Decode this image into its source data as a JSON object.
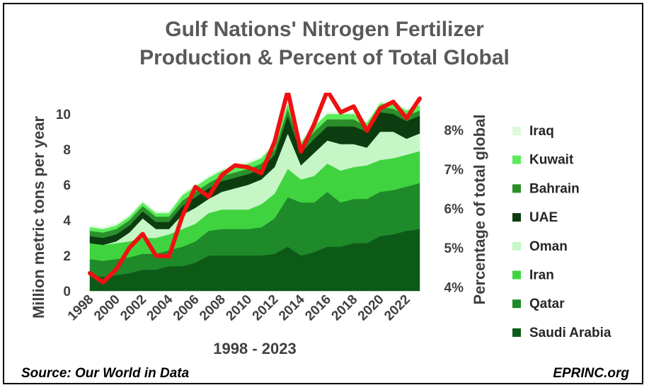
{
  "chart_data": {
    "type": "area",
    "title_line1": "Gulf Nations' Nitrogen Fertilizer",
    "title_line2": "Production & Percent of Total Global",
    "xlabel": "1998 - 2023",
    "ylabel": "Million  metric tons per year",
    "y2label": "Percentage of total global",
    "x": [
      1998,
      1999,
      2000,
      2001,
      2002,
      2003,
      2004,
      2005,
      2006,
      2007,
      2008,
      2009,
      2010,
      2011,
      2012,
      2013,
      2014,
      2015,
      2016,
      2017,
      2018,
      2019,
      2020,
      2021,
      2022,
      2023
    ],
    "x_tick_labels": [
      "1998",
      "2000",
      "2002",
      "2004",
      "2006",
      "2008",
      "2010",
      "2012",
      "2014",
      "2016",
      "2018",
      "2020",
      "2022"
    ],
    "ylim": [
      0,
      11.2
    ],
    "y_ticks": [
      "0",
      "2",
      "4",
      "6",
      "8",
      "10"
    ],
    "y2lim": [
      3.9,
      8.95
    ],
    "y2_ticks": [
      "4%",
      "5%",
      "6%",
      "7%",
      "8%"
    ],
    "series": [
      {
        "name": "Saudi Arabia",
        "color": "#0d5a18",
        "values": [
          0.9,
          0.8,
          0.9,
          1.0,
          1.2,
          1.2,
          1.4,
          1.4,
          1.6,
          2.0,
          2.0,
          2.0,
          2.0,
          2.0,
          2.1,
          2.5,
          2.0,
          2.2,
          2.5,
          2.5,
          2.7,
          2.7,
          3.1,
          3.2,
          3.4,
          3.5
        ]
      },
      {
        "name": "Qatar",
        "color": "#1f8a2a",
        "values": [
          0.9,
          0.9,
          0.9,
          0.9,
          0.9,
          0.9,
          0.9,
          1.1,
          1.2,
          1.4,
          1.5,
          1.5,
          1.5,
          1.6,
          2.0,
          2.8,
          3.0,
          2.8,
          3.1,
          2.5,
          2.5,
          2.5,
          2.5,
          2.5,
          2.5,
          2.6
        ]
      },
      {
        "name": "Iran",
        "color": "#3fd43f",
        "values": [
          0.9,
          0.9,
          0.9,
          0.9,
          0.9,
          0.9,
          0.9,
          1.0,
          1.0,
          1.0,
          1.1,
          1.1,
          1.1,
          1.3,
          1.4,
          1.6,
          1.3,
          1.5,
          1.6,
          1.8,
          1.8,
          1.9,
          1.8,
          1.8,
          1.8,
          1.8
        ]
      },
      {
        "name": "Oman",
        "color": "#c6f5c6",
        "values": [
          0.0,
          0.0,
          0.1,
          0.5,
          1.1,
          0.5,
          0.3,
          0.8,
          0.9,
          0.8,
          1.0,
          1.2,
          1.4,
          1.4,
          1.5,
          2.0,
          0.8,
          1.3,
          1.3,
          1.5,
          1.3,
          1.0,
          1.6,
          1.5,
          0.9,
          1.0
        ]
      },
      {
        "name": "UAE",
        "color": "#0b3d10",
        "values": [
          0.4,
          0.4,
          0.4,
          0.4,
          0.4,
          0.4,
          0.4,
          0.5,
          0.6,
          0.6,
          0.6,
          0.6,
          0.6,
          0.6,
          0.7,
          1.0,
          0.7,
          0.8,
          0.8,
          1.0,
          1.0,
          0.9,
          1.1,
          1.0,
          1.0,
          1.0
        ]
      },
      {
        "name": "Bahrain",
        "color": "#2a8f2a",
        "values": [
          0.3,
          0.3,
          0.3,
          0.3,
          0.3,
          0.3,
          0.3,
          0.3,
          0.3,
          0.3,
          0.3,
          0.3,
          0.3,
          0.3,
          0.3,
          0.4,
          0.3,
          0.4,
          0.4,
          0.4,
          0.4,
          0.3,
          0.3,
          0.3,
          0.3,
          0.3
        ]
      },
      {
        "name": "Kuwait",
        "color": "#5aeb5a",
        "values": [
          0.2,
          0.2,
          0.2,
          0.2,
          0.2,
          0.2,
          0.2,
          0.3,
          0.3,
          0.3,
          0.3,
          0.3,
          0.3,
          0.3,
          0.3,
          0.3,
          0.3,
          0.3,
          0.3,
          0.3,
          0.3,
          0.2,
          0.2,
          0.3,
          0.3,
          0.3
        ]
      },
      {
        "name": "Iraq",
        "color": "#ddfadd",
        "values": [
          0.1,
          0.1,
          0.1,
          0.1,
          0.1,
          0.1,
          0.1,
          0.1,
          0.1,
          0.1,
          0.1,
          0.1,
          0.1,
          0.1,
          0.1,
          0.1,
          0.1,
          0.1,
          0.1,
          0.1,
          0.1,
          0.1,
          0.1,
          0.1,
          0.1,
          0.1
        ]
      }
    ],
    "legend": [
      "Iraq",
      "Kuwait",
      "Bahrain",
      "UAE",
      "Oman",
      "Iran",
      "Qatar",
      "Saudi Arabia"
    ],
    "percent_line": {
      "name": "Percent of total global",
      "color": "#ee1111",
      "axis": "right",
      "values": [
        4.35,
        4.12,
        4.45,
        5.0,
        5.35,
        4.8,
        4.78,
        5.8,
        6.55,
        6.3,
        6.85,
        7.1,
        7.05,
        6.9,
        7.7,
        9.0,
        7.45,
        8.15,
        9.0,
        8.45,
        8.6,
        7.98,
        8.55,
        8.72,
        8.3,
        8.8
      ]
    }
  },
  "footer": {
    "source": "Source: Our World in Data",
    "brand": "EPRINC.org"
  }
}
